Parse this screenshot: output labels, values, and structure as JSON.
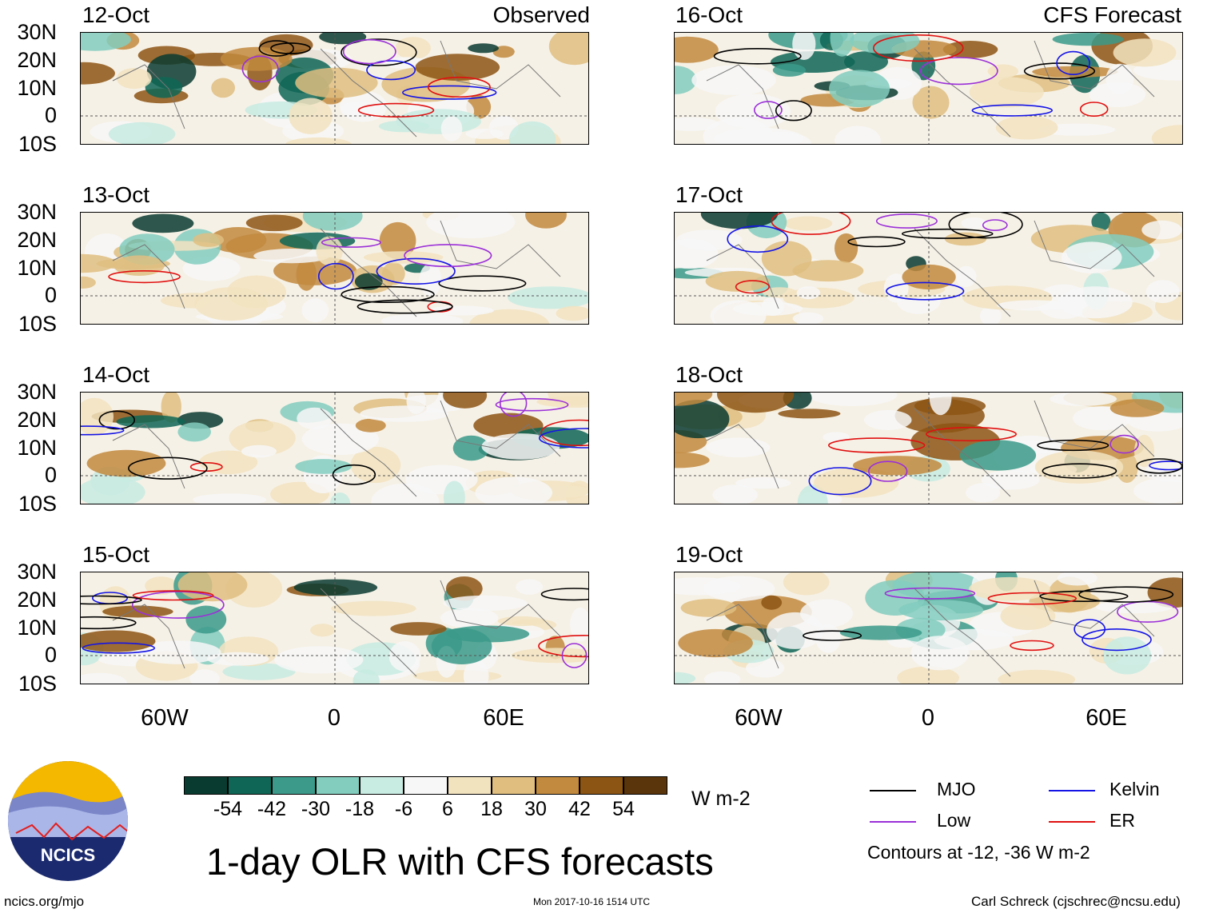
{
  "header": {
    "left": "Observed",
    "right": "CFS Forecast"
  },
  "panels_left": [
    {
      "date": "12-Oct"
    },
    {
      "date": "13-Oct"
    },
    {
      "date": "14-Oct"
    },
    {
      "date": "15-Oct"
    }
  ],
  "panels_right": [
    {
      "date": "16-Oct"
    },
    {
      "date": "17-Oct"
    },
    {
      "date": "18-Oct"
    },
    {
      "date": "19-Oct"
    }
  ],
  "lat_labels": [
    "30N",
    "20N",
    "10N",
    "0",
    "10S"
  ],
  "lon_labels": [
    "60W",
    "0",
    "60E"
  ],
  "colorbar": {
    "colors": [
      "#0a3b30",
      "#0f6656",
      "#3b9a8a",
      "#82cdbe",
      "#c8ebe2",
      "#f7f7f7",
      "#f2e3bf",
      "#dfbe80",
      "#c28a3e",
      "#8d5514",
      "#5a340a"
    ],
    "ticks": [
      "-54",
      "-42",
      "-30",
      "-18",
      "-6",
      "6",
      "18",
      "30",
      "42",
      "54"
    ],
    "units": "W m-2"
  },
  "legend": {
    "items": [
      {
        "label": "MJO",
        "color": "#000000"
      },
      {
        "label": "Kelvin",
        "color": "#1414e6"
      },
      {
        "label": "Low",
        "color": "#9b30d8"
      },
      {
        "label": "ER",
        "color": "#e01010"
      }
    ],
    "note": "Contours at -12, -36 W m-2"
  },
  "title": "1-day OLR with CFS forecasts",
  "logo_text": "NCICS",
  "footer": {
    "left": "ncics.org/mjo",
    "center": "Mon 2017-10-16 1514 UTC",
    "right": "Carl Schreck (cjschrec@ncsu.edu)"
  }
}
